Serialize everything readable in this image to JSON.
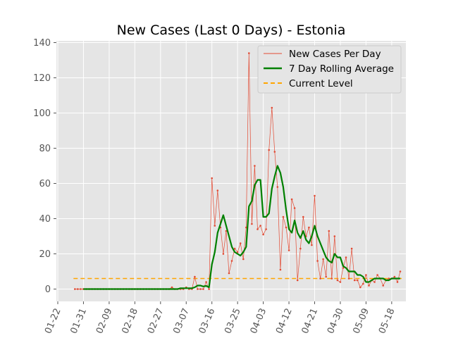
{
  "chart_data": {
    "type": "line",
    "title": "New Cases (Last 0 Days) - Estonia",
    "xlabel": "",
    "ylabel": "",
    "ylim": [
      -7,
      140
    ],
    "grid": true,
    "legend_position": "top-right",
    "x_ticks": [
      "01-22",
      "01-31",
      "02-09",
      "02-18",
      "02-27",
      "03-07",
      "03-16",
      "03-25",
      "04-03",
      "04-12",
      "04-21",
      "04-30",
      "05-09",
      "05-18"
    ],
    "y_ticks": [
      0,
      20,
      40,
      60,
      80,
      100,
      120,
      140
    ],
    "dates": [
      "01-28",
      "01-29",
      "01-30",
      "01-31",
      "02-01",
      "02-02",
      "02-03",
      "02-04",
      "02-05",
      "02-06",
      "02-07",
      "02-08",
      "02-09",
      "02-10",
      "02-11",
      "02-12",
      "02-13",
      "02-14",
      "02-15",
      "02-16",
      "02-17",
      "02-18",
      "02-19",
      "02-20",
      "02-21",
      "02-22",
      "02-23",
      "02-24",
      "02-25",
      "02-26",
      "02-27",
      "02-28",
      "02-29",
      "03-01",
      "03-02",
      "03-03",
      "03-04",
      "03-05",
      "03-06",
      "03-07",
      "03-08",
      "03-09",
      "03-10",
      "03-11",
      "03-12",
      "03-13",
      "03-14",
      "03-15",
      "03-16",
      "03-17",
      "03-18",
      "03-19",
      "03-20",
      "03-21",
      "03-22",
      "03-23",
      "03-24",
      "03-25",
      "03-26",
      "03-27",
      "03-28",
      "03-29",
      "03-30",
      "03-31",
      "04-01",
      "04-02",
      "04-03",
      "04-04",
      "04-05",
      "04-06",
      "04-07",
      "04-08",
      "04-09",
      "04-10",
      "04-11",
      "04-12",
      "04-13",
      "04-14",
      "04-15",
      "04-16",
      "04-17",
      "04-18",
      "04-19",
      "04-20",
      "04-21",
      "04-22",
      "04-23",
      "04-24",
      "04-25",
      "04-26",
      "04-27",
      "04-28",
      "04-29",
      "04-30",
      "05-01",
      "05-02",
      "05-03",
      "05-04",
      "05-05",
      "05-06",
      "05-07",
      "05-08",
      "05-09",
      "05-10",
      "05-11",
      "05-12",
      "05-13",
      "05-14",
      "05-15",
      "05-16",
      "05-17",
      "05-18",
      "05-19",
      "05-20",
      "05-21"
    ],
    "series": [
      {
        "name": "New Cases Per Day",
        "color": "#e24a33",
        "values": [
          0,
          0,
          0,
          0,
          0,
          0,
          0,
          0,
          0,
          0,
          0,
          0,
          0,
          0,
          0,
          0,
          0,
          0,
          0,
          0,
          0,
          0,
          0,
          0,
          0,
          0,
          0,
          0,
          0,
          0,
          0,
          0,
          0,
          0,
          1,
          0,
          0,
          0,
          0,
          1,
          0,
          0,
          7,
          0,
          0,
          0,
          4,
          0,
          63,
          36,
          56,
          35,
          20,
          33,
          9,
          16,
          23,
          21,
          26,
          17,
          35,
          134,
          37,
          70,
          34,
          36,
          31,
          34,
          79,
          103,
          78,
          58,
          11,
          41,
          35,
          22,
          51,
          46,
          5,
          23,
          41,
          30,
          35,
          25,
          53,
          16,
          6,
          17,
          7,
          33,
          6,
          30,
          5,
          4,
          12,
          18,
          6,
          23,
          5,
          5,
          1,
          3,
          8,
          2,
          5,
          4,
          8,
          6,
          2,
          5,
          6,
          6,
          7,
          4,
          10
        ]
      },
      {
        "name": "7 Day Rolling Average",
        "color": "#008000",
        "values": [
          null,
          null,
          null,
          0,
          0,
          0,
          0,
          0,
          0,
          0,
          0,
          0,
          0,
          0,
          0,
          0,
          0,
          0,
          0,
          0,
          0,
          0,
          0,
          0,
          0,
          0,
          0,
          0,
          0,
          0,
          0,
          0,
          0,
          0,
          0,
          0,
          0,
          0.5,
          0.5,
          0.5,
          0.5,
          0.5,
          1,
          2,
          2,
          1.5,
          1.8,
          1,
          14,
          21,
          32,
          37,
          42,
          36,
          30,
          24,
          21,
          20,
          19,
          21,
          24,
          47,
          50,
          59,
          62,
          62,
          41,
          41,
          43,
          57,
          64,
          70,
          66,
          58,
          45,
          34,
          32,
          39,
          32,
          29,
          33,
          28,
          26,
          30,
          36,
          30,
          26,
          22,
          18,
          16,
          15,
          20,
          18,
          18,
          13,
          12,
          10,
          10,
          10,
          8,
          8,
          7,
          4,
          4,
          5,
          6,
          6,
          6,
          6,
          5,
          5,
          6,
          6,
          6,
          6
        ]
      },
      {
        "name": "Current Level",
        "color": "#ffa500",
        "dashed": true,
        "value": 6
      }
    ]
  }
}
